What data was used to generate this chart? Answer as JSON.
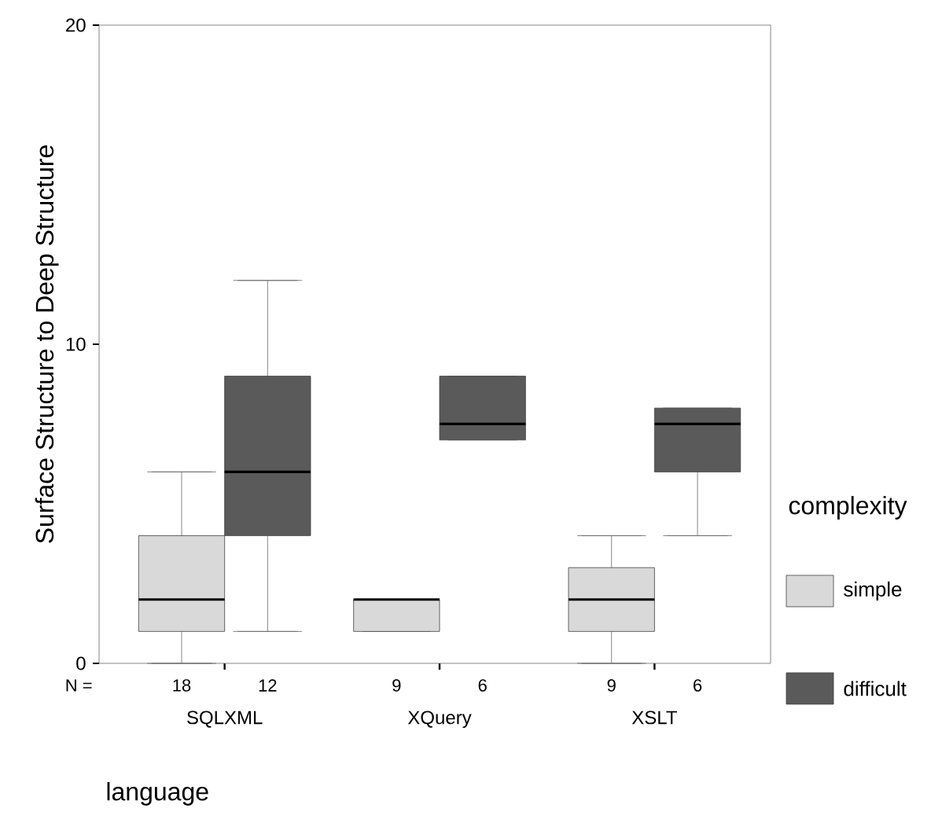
{
  "chart_data": {
    "type": "box",
    "ylabel": "Surface Structure to Deep Structure",
    "xlabel": "language",
    "legend_title": "complexity",
    "legend": "right",
    "grid": false,
    "categories": [
      "SQLXML",
      "XQuery",
      "XSLT"
    ],
    "ylim": [
      0,
      20
    ],
    "yticks": [
      0,
      10,
      20
    ],
    "series": [
      {
        "name": "simple",
        "color": "#d9d9d9",
        "boxes": [
          {
            "low": 0,
            "q1": 1,
            "median": 2,
            "q3": 4,
            "high": 6
          },
          {
            "low": 1,
            "q1": 1,
            "median": 2,
            "q3": 2,
            "high": 2
          },
          {
            "low": 0,
            "q1": 1,
            "median": 2,
            "q3": 3,
            "high": 4
          }
        ]
      },
      {
        "name": "difficult",
        "color": "#5a5a5a",
        "boxes": [
          {
            "low": 1,
            "q1": 4,
            "median": 6,
            "q3": 9,
            "high": 12
          },
          {
            "low": 7,
            "q1": 7,
            "median": 7.5,
            "q3": 9,
            "high": 9
          },
          {
            "low": 4,
            "q1": 6,
            "median": 7.5,
            "q3": 8,
            "high": 8
          }
        ]
      }
    ],
    "annotations": [
      "N =",
      "18",
      "12",
      "9",
      "6",
      "9",
      "6"
    ]
  }
}
